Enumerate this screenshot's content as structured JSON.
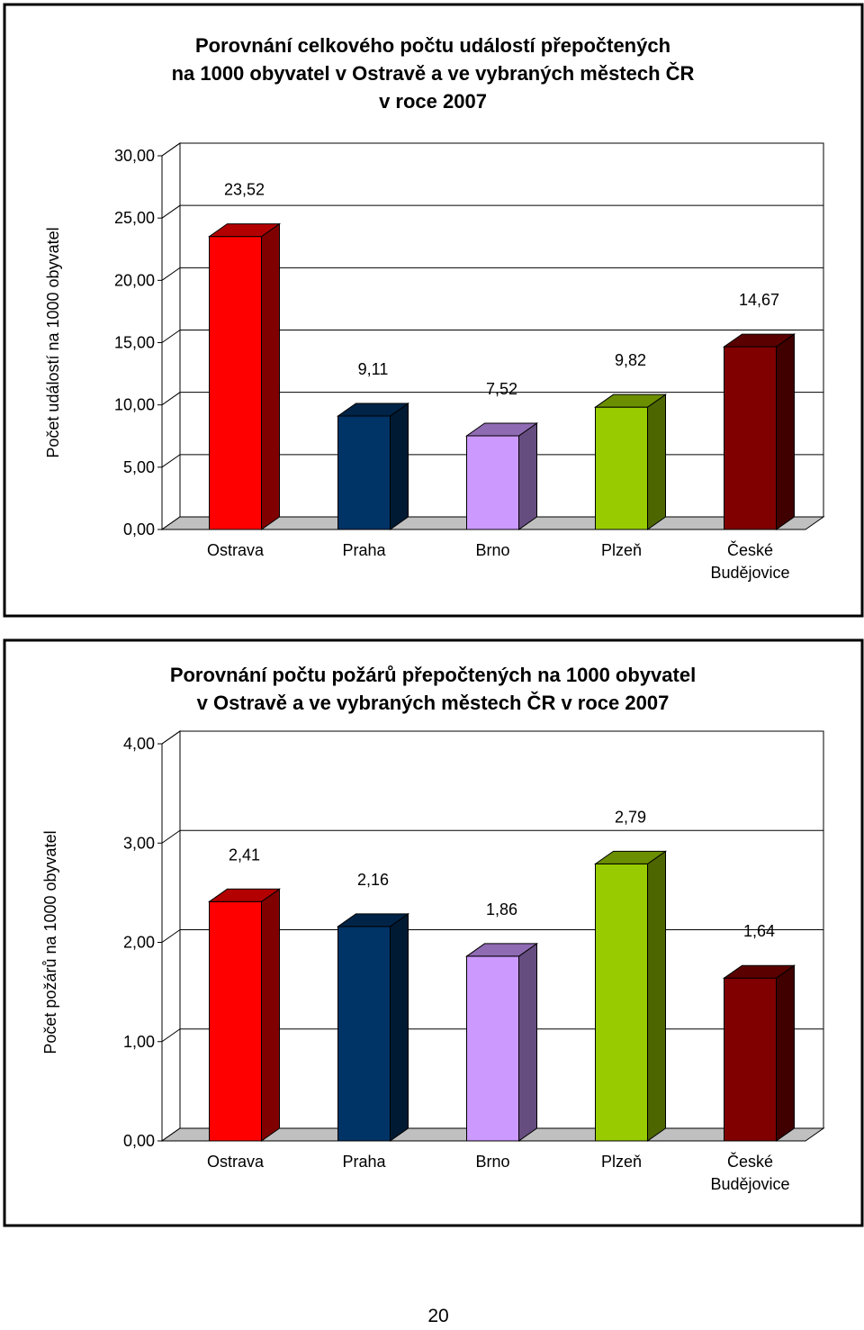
{
  "chart_data": [
    {
      "type": "bar3d",
      "title": [
        "Porovnání celkového počtu událostí přepočtených",
        "na 1000 obyvatel v Ostravě a ve vybraných městech ČR",
        "v roce 2007"
      ],
      "y_label": "Počet událostí na 1000 obyvatel",
      "categories": [
        "Ostrava",
        "Praha",
        "Brno",
        "Plzeň",
        "České Budějovice"
      ],
      "values": [
        23.52,
        9.11,
        7.52,
        9.82,
        14.67
      ],
      "value_labels": [
        "23,52",
        "9,11",
        "7,52",
        "9,82",
        "14,67"
      ],
      "colors": [
        "#ff0000",
        "#003366",
        "#cc99ff",
        "#99cc00",
        "#800000"
      ],
      "ylim": [
        0,
        30
      ],
      "yticks": [
        {
          "value": 0,
          "label": "0,00"
        },
        {
          "value": 5,
          "label": "5,00"
        },
        {
          "value": 10,
          "label": "10,00"
        },
        {
          "value": 15,
          "label": "15,00"
        },
        {
          "value": 20,
          "label": "20,00"
        },
        {
          "value": 25,
          "label": "25,00"
        },
        {
          "value": 30,
          "label": "30,00"
        }
      ],
      "grid": true
    },
    {
      "type": "bar3d",
      "title": [
        "Porovnání počtu požárů přepočtených na 1000 obyvatel",
        "v Ostravě a ve vybraných městech ČR v roce 2007"
      ],
      "y_label": "Počet požárů na 1000 obyvatel",
      "categories": [
        "Ostrava",
        "Praha",
        "Brno",
        "Plzeň",
        "České Budějovice"
      ],
      "values": [
        2.41,
        2.16,
        1.86,
        2.79,
        1.64
      ],
      "value_labels": [
        "2,41",
        "2,16",
        "1,86",
        "2,79",
        "1,64"
      ],
      "colors": [
        "#ff0000",
        "#003366",
        "#cc99ff",
        "#99cc00",
        "#800000"
      ],
      "ylim": [
        0,
        4
      ],
      "yticks": [
        {
          "value": 0,
          "label": "0,00"
        },
        {
          "value": 1,
          "label": "1,00"
        },
        {
          "value": 2,
          "label": "2,00"
        },
        {
          "value": 3,
          "label": "3,00"
        },
        {
          "value": 4,
          "label": "4,00"
        }
      ],
      "grid": true
    }
  ],
  "page_number": "20"
}
